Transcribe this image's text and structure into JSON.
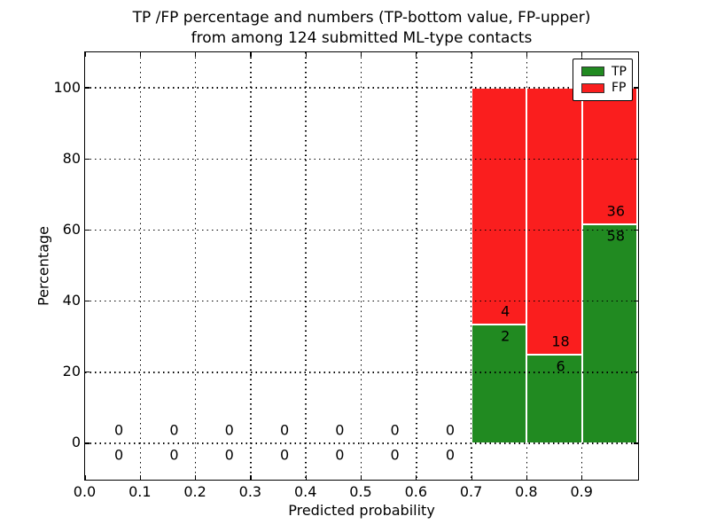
{
  "chart_data": {
    "type": "bar",
    "stacked": true,
    "title_lines": [
      "TP /FP percentage and numbers (TP-bottom value, FP-upper)",
      "from among 124 submitted ML-type contacts"
    ],
    "xlabel": "Predicted probability",
    "ylabel": "Percentage",
    "xlim": [
      0.0,
      1.0
    ],
    "ylim": [
      -10,
      110
    ],
    "xtick_labels": [
      "0.0",
      "0.1",
      "0.2",
      "0.3",
      "0.4",
      "0.5",
      "0.6",
      "0.7",
      "0.8",
      "0.9"
    ],
    "ytick_values": [
      0,
      20,
      40,
      60,
      80,
      100
    ],
    "grid": "dotted",
    "legend_position": "upper right",
    "edge_color": "#ffffff",
    "bin_width": 0.1,
    "series": [
      {
        "name": "TP",
        "color": "#218a21"
      },
      {
        "name": "FP",
        "color": "#fa1e1e"
      }
    ],
    "bins": [
      {
        "x0": 0.0,
        "tp": 0,
        "fp": 0
      },
      {
        "x0": 0.1,
        "tp": 0,
        "fp": 0
      },
      {
        "x0": 0.2,
        "tp": 0,
        "fp": 0
      },
      {
        "x0": 0.3,
        "tp": 0,
        "fp": 0
      },
      {
        "x0": 0.4,
        "tp": 0,
        "fp": 0
      },
      {
        "x0": 0.5,
        "tp": 0,
        "fp": 0
      },
      {
        "x0": 0.6,
        "tp": 0,
        "fp": 0
      },
      {
        "x0": 0.7,
        "tp": 2,
        "fp": 4
      },
      {
        "x0": 0.8,
        "tp": 6,
        "fp": 18
      },
      {
        "x0": 0.9,
        "tp": 58,
        "fp": 36
      }
    ],
    "total_contacts": 124
  }
}
